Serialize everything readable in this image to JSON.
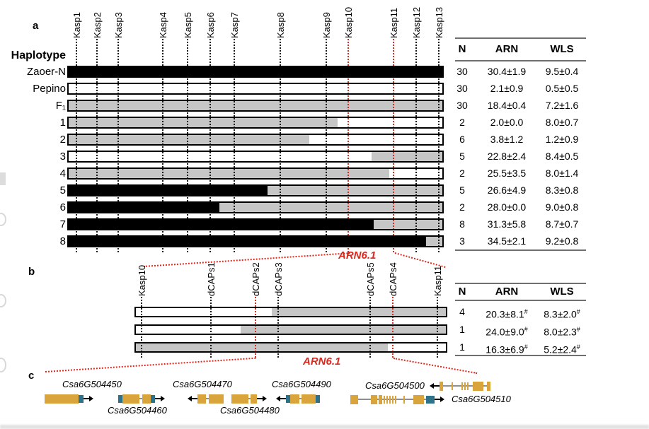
{
  "colors": {
    "black": "#000000",
    "gray": "#c6c6c6",
    "white": "#ffffff",
    "red": "#d9291e",
    "gold": "#d9a43c",
    "teal": "#2e7189",
    "intron_line": "#8f8f8f",
    "marker_line": "#1a1a1a",
    "table_rule": "#6f6f6f"
  },
  "qtl": {
    "label": "ARN6.1"
  },
  "panel_a": {
    "panel_label": "a",
    "col_header": "Haplotype",
    "markers": [
      {
        "name": "Kasp1",
        "pos": 0.024,
        "red": false
      },
      {
        "name": "Kasp2",
        "pos": 0.079,
        "red": false
      },
      {
        "name": "Kasp3",
        "pos": 0.135,
        "red": false
      },
      {
        "name": "Kasp4",
        "pos": 0.254,
        "red": false
      },
      {
        "name": "Kasp5",
        "pos": 0.32,
        "red": false
      },
      {
        "name": "Kasp6",
        "pos": 0.38,
        "red": false
      },
      {
        "name": "Kasp7",
        "pos": 0.444,
        "red": false
      },
      {
        "name": "Kasp8",
        "pos": 0.566,
        "red": false
      },
      {
        "name": "Kasp9",
        "pos": 0.688,
        "red": false
      },
      {
        "name": "Kasp10",
        "pos": 0.746,
        "red": true
      },
      {
        "name": "Kasp11",
        "pos": 0.867,
        "red": true
      },
      {
        "name": "Kasp12",
        "pos": 0.927,
        "red": false
      },
      {
        "name": "Kasp13",
        "pos": 0.987,
        "red": false
      }
    ],
    "table_headers": [
      "N",
      "ARN",
      "WLS"
    ],
    "rows": [
      {
        "label": "Zaoer-N",
        "segments": [
          [
            "black",
            0,
            1
          ]
        ],
        "n": "30",
        "arn": "30.4±1.9",
        "wls": "9.5±0.4"
      },
      {
        "label": "Pepino",
        "segments": [
          [
            "white",
            0,
            1
          ]
        ],
        "n": "30",
        "arn": "2.1±0.9",
        "wls": "0.5±0.5"
      },
      {
        "label": "F₁",
        "segments": [
          [
            "gray",
            0,
            1
          ]
        ],
        "n": "30",
        "arn": "18.4±0.4",
        "wls": "7.2±1.6"
      },
      {
        "label": "1",
        "segments": [
          [
            "gray",
            0,
            0.718
          ],
          [
            "white",
            0.718,
            1
          ]
        ],
        "n": "2",
        "arn": "2.0±0.0",
        "wls": "8.0±0.7"
      },
      {
        "label": "2",
        "segments": [
          [
            "gray",
            0,
            0.643
          ],
          [
            "white",
            0.643,
            1
          ]
        ],
        "n": "6",
        "arn": "3.8±1.2",
        "wls": "1.2±0.9"
      },
      {
        "label": "3",
        "segments": [
          [
            "white",
            0,
            0.808
          ],
          [
            "gray",
            0.808,
            1
          ]
        ],
        "n": "5",
        "arn": "22.8±2.4",
        "wls": "8.4±0.5"
      },
      {
        "label": "4",
        "segments": [
          [
            "gray",
            0,
            0.855
          ],
          [
            "white",
            0.855,
            1
          ]
        ],
        "n": "2",
        "arn": "25.5±3.5",
        "wls": "8.0±1.4"
      },
      {
        "label": "5",
        "segments": [
          [
            "black",
            0,
            0.532
          ],
          [
            "gray",
            0.532,
            1
          ]
        ],
        "n": "5",
        "arn": "26.6±4.9",
        "wls": "8.3±0.8"
      },
      {
        "label": "6",
        "segments": [
          [
            "black",
            0,
            0.404
          ],
          [
            "gray",
            0.404,
            1
          ]
        ],
        "n": "2",
        "arn": "28.0±0.0",
        "wls": "9.0±0.8"
      },
      {
        "label": "7",
        "segments": [
          [
            "black",
            0,
            0.814
          ],
          [
            "gray",
            0.814,
            1
          ]
        ],
        "n": "8",
        "arn": "31.3±5.8",
        "wls": "8.7±0.7"
      },
      {
        "label": "8",
        "segments": [
          [
            "black",
            0,
            0.953
          ],
          [
            "gray",
            0.953,
            1
          ]
        ],
        "n": "3",
        "arn": "34.5±2.1",
        "wls": "9.2±0.8"
      }
    ]
  },
  "panel_b": {
    "panel_label": "b",
    "markers": [
      {
        "name": "Kasp10",
        "pos": 0.023,
        "red": false
      },
      {
        "name": "dCAPs1",
        "pos": 0.244,
        "red": false
      },
      {
        "name": "dCAPs2",
        "pos": 0.387,
        "red": true
      },
      {
        "name": "dCAPs3",
        "pos": 0.459,
        "red": false
      },
      {
        "name": "dCAPs5",
        "pos": 0.753,
        "red": false
      },
      {
        "name": "dCAPs4",
        "pos": 0.826,
        "red": true
      },
      {
        "name": "Kasp11",
        "pos": 0.968,
        "red": false
      }
    ],
    "table_headers": [
      "N",
      "ARN",
      "WLS"
    ],
    "rows": [
      {
        "segments": [
          [
            "white",
            0,
            0.44
          ],
          [
            "gray",
            0.44,
            1
          ]
        ],
        "n": "4",
        "arn": "20.3±8.1#",
        "wls": "8.3±2.0#"
      },
      {
        "segments": [
          [
            "white",
            0,
            0.34
          ],
          [
            "gray",
            0.34,
            1
          ]
        ],
        "n": "1",
        "arn": "24.0±9.0#",
        "wls": "8.0±2.3#"
      },
      {
        "segments": [
          [
            "gray",
            0,
            0.81
          ],
          [
            "white",
            0.81,
            1
          ]
        ],
        "n": "1",
        "arn": "16.3±6.9#",
        "wls": "5.2±2.4#"
      }
    ]
  },
  "panel_c": {
    "panel_label": "c",
    "genes": [
      {
        "name": "Csa6G504450",
        "label_side": "above",
        "arrow": "right",
        "parts": [
          [
            "exon",
            48
          ],
          [
            "utr",
            7
          ]
        ]
      },
      {
        "name": "Csa6G504460",
        "label_side": "below",
        "arrow": "right",
        "parts": [
          [
            "utr",
            6
          ],
          [
            "exon",
            24
          ],
          [
            "line",
            4
          ],
          [
            "exon",
            12
          ],
          [
            "utr",
            6
          ]
        ]
      },
      {
        "name": "Csa6G504470",
        "label_side": "above",
        "arrow": "left",
        "parts": [
          [
            "exon",
            12
          ],
          [
            "line",
            4
          ],
          [
            "exon",
            21
          ]
        ]
      },
      {
        "name": "Csa6G504480",
        "label_side": "below",
        "arrow": "right",
        "parts": [
          [
            "exon",
            24
          ],
          [
            "line",
            3
          ],
          [
            "exon",
            9
          ]
        ]
      },
      {
        "name": "Csa6G504490",
        "label_side": "above",
        "arrow": "left",
        "parts": [
          [
            "utr",
            6
          ],
          [
            "exon",
            13
          ],
          [
            "line",
            3
          ],
          [
            "exon",
            20
          ],
          [
            "utr",
            6
          ]
        ]
      },
      {
        "name": "Csa6G504500",
        "label_side": "left",
        "arrow": "left",
        "parts": [
          [
            "exon",
            5
          ],
          [
            "line",
            12
          ],
          [
            "tick",
            2
          ],
          [
            "line",
            12
          ],
          [
            "tick",
            2
          ],
          [
            "line",
            2
          ],
          [
            "tick",
            2
          ],
          [
            "line",
            2
          ],
          [
            "tick",
            2
          ],
          [
            "line",
            6
          ],
          [
            "exon",
            15
          ],
          [
            "line",
            5
          ],
          [
            "exon",
            5
          ]
        ]
      },
      {
        "name": "Csa6G504510",
        "label_side": "right",
        "arrow": "right",
        "parts": [
          [
            "exon",
            11
          ],
          [
            "line",
            18
          ],
          [
            "exon",
            9
          ],
          [
            "line",
            2
          ],
          [
            "exon",
            5
          ],
          [
            "line",
            2
          ],
          [
            "tick",
            2
          ],
          [
            "line",
            2
          ],
          [
            "tick",
            2
          ],
          [
            "line",
            2
          ],
          [
            "tick",
            2
          ],
          [
            "line",
            2
          ],
          [
            "tick",
            2
          ],
          [
            "line",
            2
          ],
          [
            "tick",
            2
          ],
          [
            "line",
            10
          ],
          [
            "tick",
            2
          ],
          [
            "line",
            12
          ],
          [
            "exon",
            15
          ],
          [
            "line",
            3
          ],
          [
            "utr",
            12
          ]
        ]
      }
    ]
  }
}
